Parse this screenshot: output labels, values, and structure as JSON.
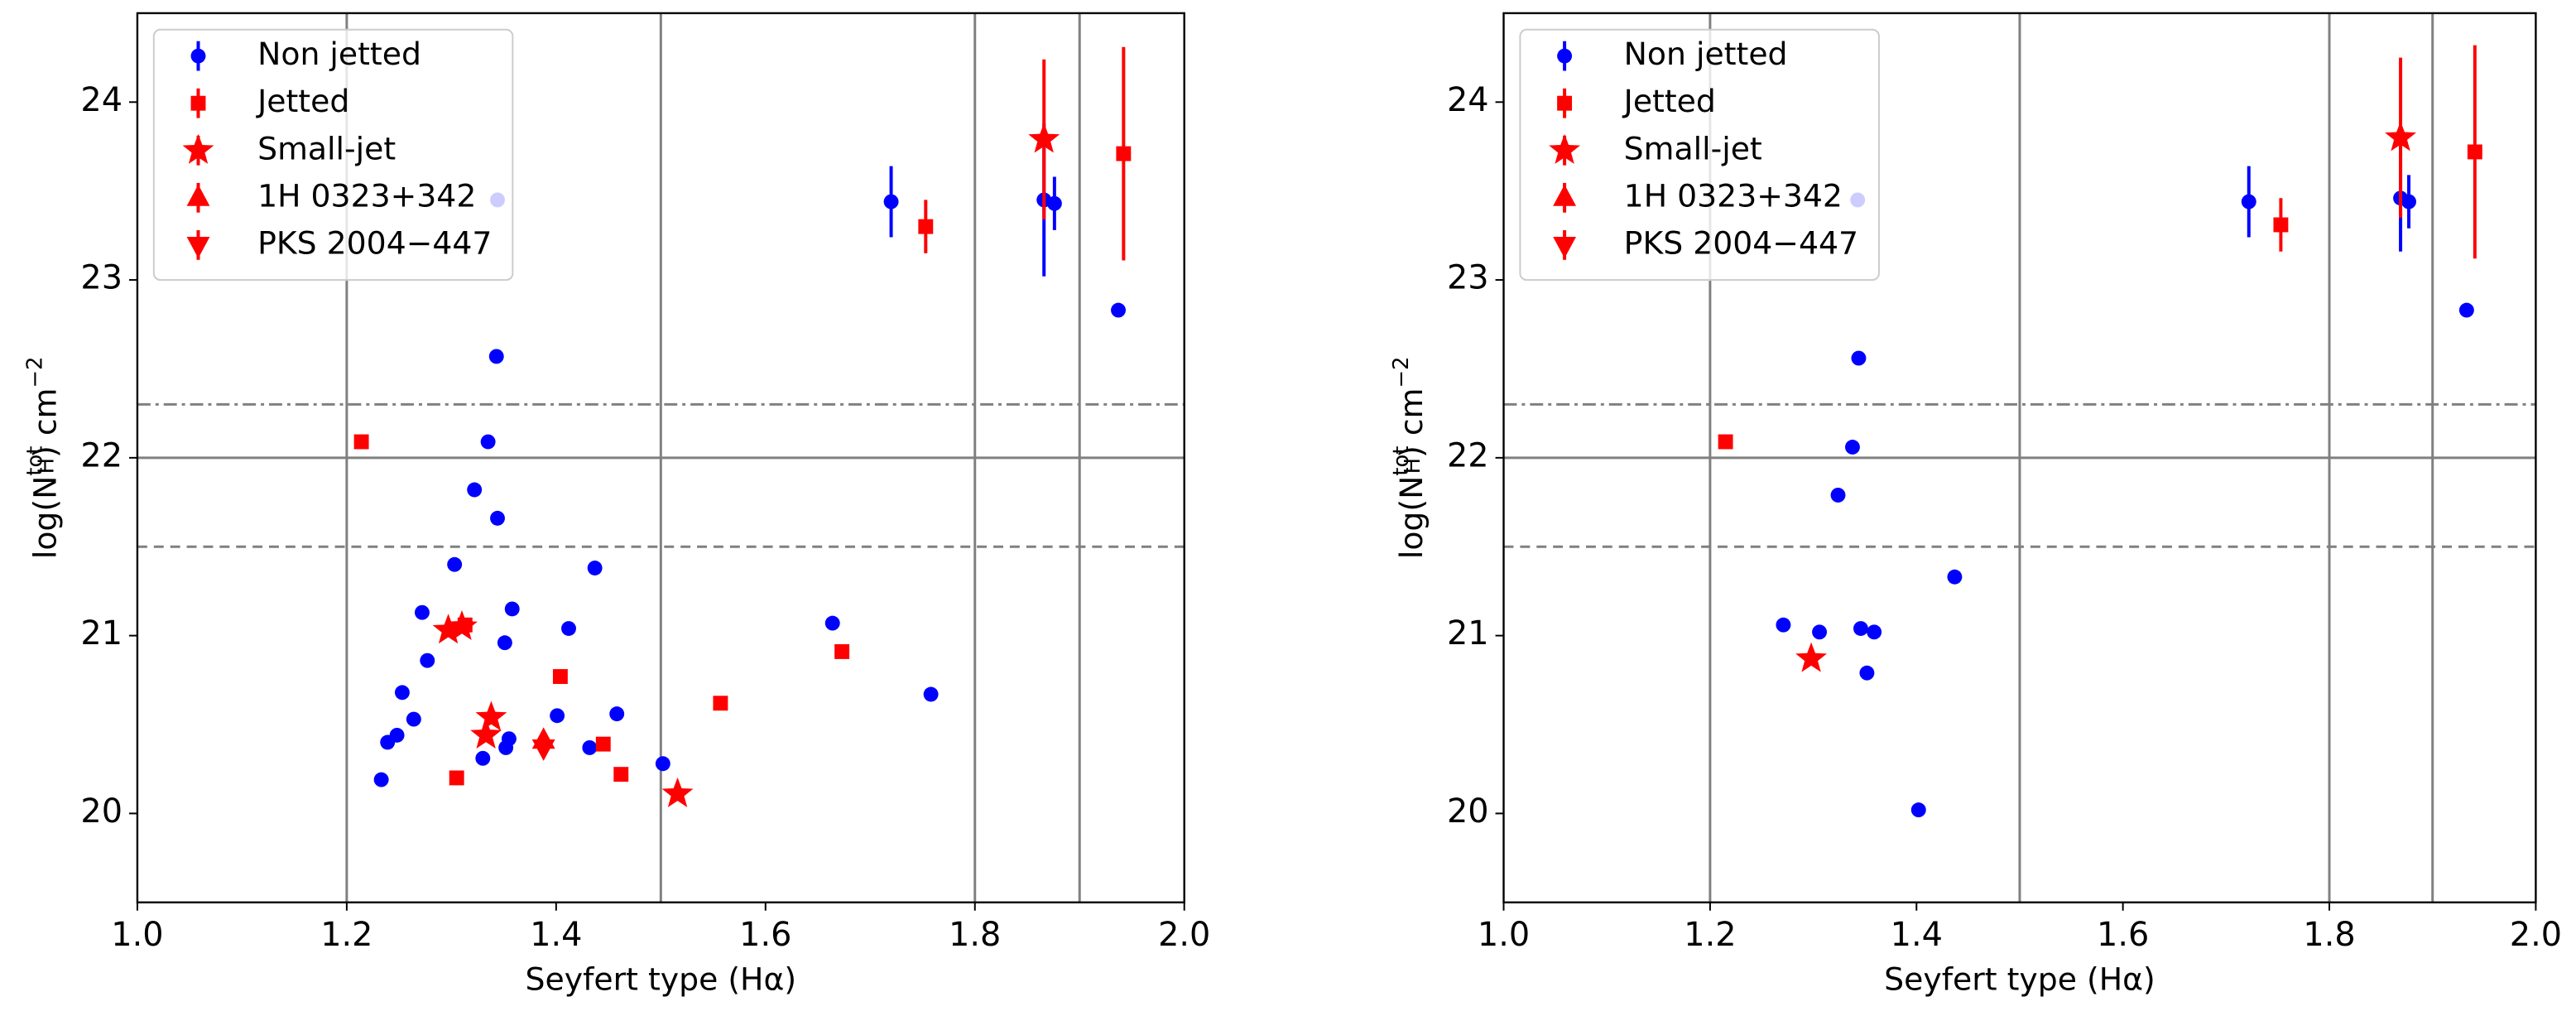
{
  "chart_data": [
    {
      "type": "scatter",
      "xlabel": "Seyfert type (Hα)",
      "ylabel": [
        "log(N",
        "tot",
        "H",
        ") cm",
        "−2"
      ],
      "xlim": [
        1.0,
        2.0
      ],
      "ylim": [
        19.5,
        24.5
      ],
      "xticks": [
        {
          "value": 1.0,
          "label": "1.0"
        },
        {
          "value": 1.2,
          "label": "1.2"
        },
        {
          "value": 1.4,
          "label": "1.4"
        },
        {
          "value": 1.6,
          "label": "1.6"
        },
        {
          "value": 1.8,
          "label": "1.8"
        },
        {
          "value": 2.0,
          "label": "2.0"
        }
      ],
      "yticks": [
        20,
        21,
        22,
        23,
        24
      ],
      "vlines": [
        1.2,
        1.5,
        1.8,
        1.9
      ],
      "hlines": [
        {
          "value": 22,
          "style": "solid"
        },
        {
          "value": 22.3,
          "style": "dashdot"
        },
        {
          "value": 21.5,
          "style": "dashed"
        }
      ],
      "legend": "upper left",
      "series": [
        {
          "name": "Non jetted",
          "color": "#0000ff",
          "marker": "circle",
          "x": [
            1.72,
            1.866,
            1.876,
            1.937,
            1.344,
            1.343,
            1.335,
            1.322,
            1.344,
            1.303,
            1.437,
            1.272,
            1.358,
            1.412,
            1.351,
            1.277,
            1.664,
            1.758,
            1.253,
            1.264,
            1.401,
            1.458,
            1.248,
            1.239,
            1.355,
            1.352,
            1.33,
            1.432,
            1.502,
            1.233
          ],
          "values": [
            23.44,
            23.45,
            23.43,
            22.83,
            23.45,
            22.57,
            22.09,
            21.82,
            21.66,
            21.4,
            21.38,
            21.13,
            21.15,
            21.04,
            20.96,
            20.86,
            21.07,
            20.67,
            20.68,
            20.53,
            20.55,
            20.56,
            20.44,
            20.4,
            20.42,
            20.37,
            20.31,
            20.37,
            20.28,
            20.19
          ],
          "errors": [
            0.2,
            0.43,
            0.15,
            null,
            null,
            null,
            null,
            null,
            null,
            null,
            null,
            null,
            null,
            null,
            null,
            null,
            null,
            null,
            null,
            null,
            null,
            null,
            null,
            null,
            null,
            null,
            null,
            null,
            null,
            null
          ]
        },
        {
          "name": "Jetted",
          "color": "#ff0000",
          "marker": "square",
          "x": [
            1.214,
            1.753,
            1.942,
            1.404,
            1.557,
            1.673,
            1.445,
            1.462,
            1.305,
            1.313
          ],
          "values": [
            22.09,
            23.3,
            23.71,
            20.77,
            20.62,
            20.91,
            20.39,
            20.22,
            20.2,
            21.06
          ],
          "errors": [
            null,
            0.15,
            0.6,
            null,
            null,
            null,
            null,
            null,
            null,
            null
          ]
        },
        {
          "name": "Small-jet",
          "color": "#ff0000",
          "marker": "star",
          "x": [
            1.866,
            1.297,
            1.31,
            1.338,
            1.333,
            1.516
          ],
          "values": [
            23.79,
            21.03,
            21.05,
            20.54,
            20.44,
            20.11
          ],
          "errors": [
            0.45,
            null,
            null,
            null,
            null,
            null
          ]
        },
        {
          "name": "1H 0323+342",
          "color": "#ff0000",
          "marker": "triangle-up",
          "x": [
            1.388
          ],
          "values": [
            20.41
          ],
          "errors": [
            null
          ]
        },
        {
          "name": "PKS 2004−447",
          "color": "#ff0000",
          "marker": "triangle-down",
          "x": [
            1.388
          ],
          "values": [
            20.37
          ],
          "errors": [
            null
          ]
        }
      ]
    },
    {
      "type": "scatter",
      "xlabel": "Seyfert type (Hα)",
      "ylabel": [
        "log(N",
        "tot",
        "H",
        ") cm",
        "−2"
      ],
      "xlim": [
        1.0,
        2.0
      ],
      "ylim": [
        19.5,
        24.5
      ],
      "xticks": [
        {
          "value": 1.0,
          "label": "1.0"
        },
        {
          "value": 1.2,
          "label": "1.2"
        },
        {
          "value": 1.4,
          "label": "1.4"
        },
        {
          "value": 1.6,
          "label": "1.6"
        },
        {
          "value": 1.8,
          "label": "1.8"
        },
        {
          "value": 2.0,
          "label": "2.0"
        }
      ],
      "yticks": [
        20,
        21,
        22,
        23,
        24
      ],
      "vlines": [
        1.2,
        1.5,
        1.8,
        1.9
      ],
      "hlines": [
        {
          "value": 22,
          "style": "solid"
        },
        {
          "value": 22.3,
          "style": "dashdot"
        },
        {
          "value": 21.5,
          "style": "dashed"
        }
      ],
      "legend": "upper left",
      "series": [
        {
          "name": "Non jetted",
          "color": "#0000ff",
          "marker": "circle",
          "x": [
            1.722,
            1.869,
            1.877,
            1.933,
            1.343,
            1.344,
            1.338,
            1.324,
            1.437,
            1.271,
            1.306,
            1.346,
            1.359,
            1.352,
            1.402
          ],
          "values": [
            23.44,
            23.46,
            23.44,
            22.83,
            23.45,
            22.56,
            22.06,
            21.79,
            21.33,
            21.06,
            21.02,
            21.04,
            21.02,
            20.79,
            20.02
          ],
          "errors": [
            0.2,
            0.3,
            0.15,
            null,
            null,
            null,
            null,
            null,
            null,
            null,
            null,
            null,
            null,
            null,
            null
          ]
        },
        {
          "name": "Jetted",
          "color": "#ff0000",
          "marker": "square",
          "x": [
            1.215,
            1.753,
            1.941
          ],
          "values": [
            22.09,
            23.31,
            23.72
          ],
          "errors": [
            null,
            0.15,
            0.6
          ]
        },
        {
          "name": "Small-jet",
          "color": "#ff0000",
          "marker": "star",
          "x": [
            1.869,
            1.298
          ],
          "values": [
            23.8,
            20.87
          ],
          "errors": [
            0.45,
            null
          ]
        },
        {
          "name": "1H 0323+342",
          "color": "#ff0000",
          "marker": "triangle-up",
          "x": [],
          "values": [],
          "errors": []
        },
        {
          "name": "PKS 2004−447",
          "color": "#ff0000",
          "marker": "triangle-down",
          "x": [],
          "values": [],
          "errors": []
        }
      ]
    }
  ]
}
